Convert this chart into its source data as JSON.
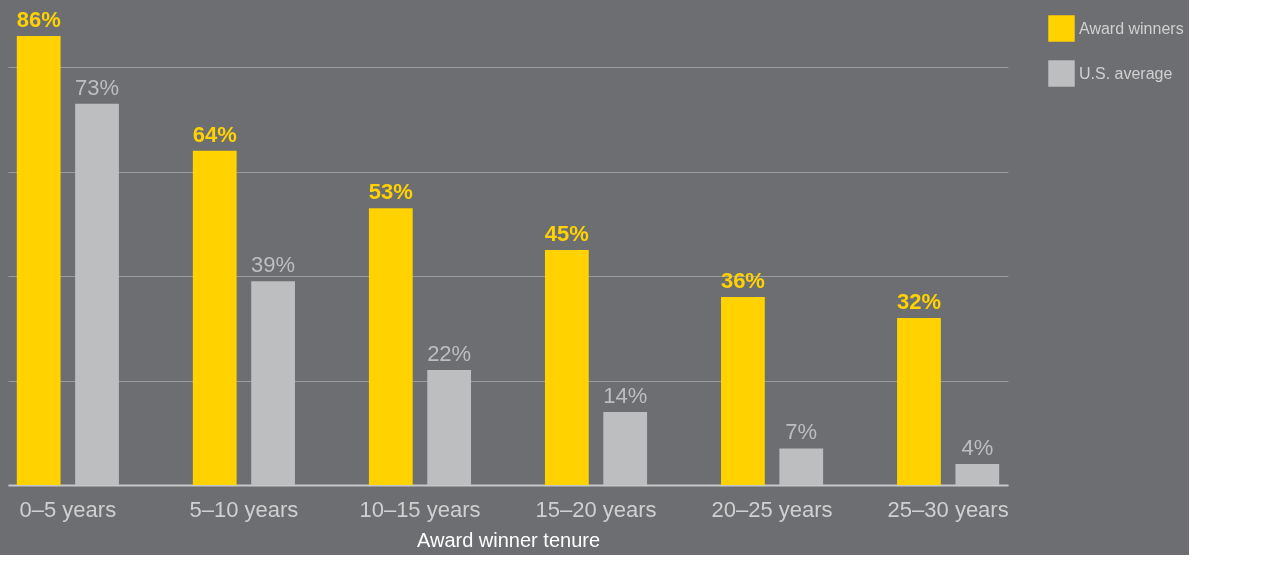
{
  "chart_data": {
    "type": "bar",
    "xlabel": "Award winner tenure",
    "categories": [
      "0–5 years",
      "5–10 years",
      "10–15 years",
      "15–20 years",
      "20–25 years",
      "25–30 years"
    ],
    "series": [
      {
        "name": "Award winners",
        "color": "#ffd200",
        "values": [
          86,
          64,
          53,
          45,
          36,
          32
        ],
        "value_labels": [
          "86%",
          "64%",
          "53%",
          "45%",
          "36%",
          "32%"
        ]
      },
      {
        "name": "U.S. average",
        "color": "#bcbec0",
        "values": [
          73,
          39,
          22,
          14,
          7,
          4
        ],
        "value_labels": [
          "73%",
          "39%",
          "22%",
          "14%",
          "7%",
          "4%"
        ]
      }
    ],
    "tick_labels": "x",
    "grid": "y",
    "legend": "top right"
  }
}
